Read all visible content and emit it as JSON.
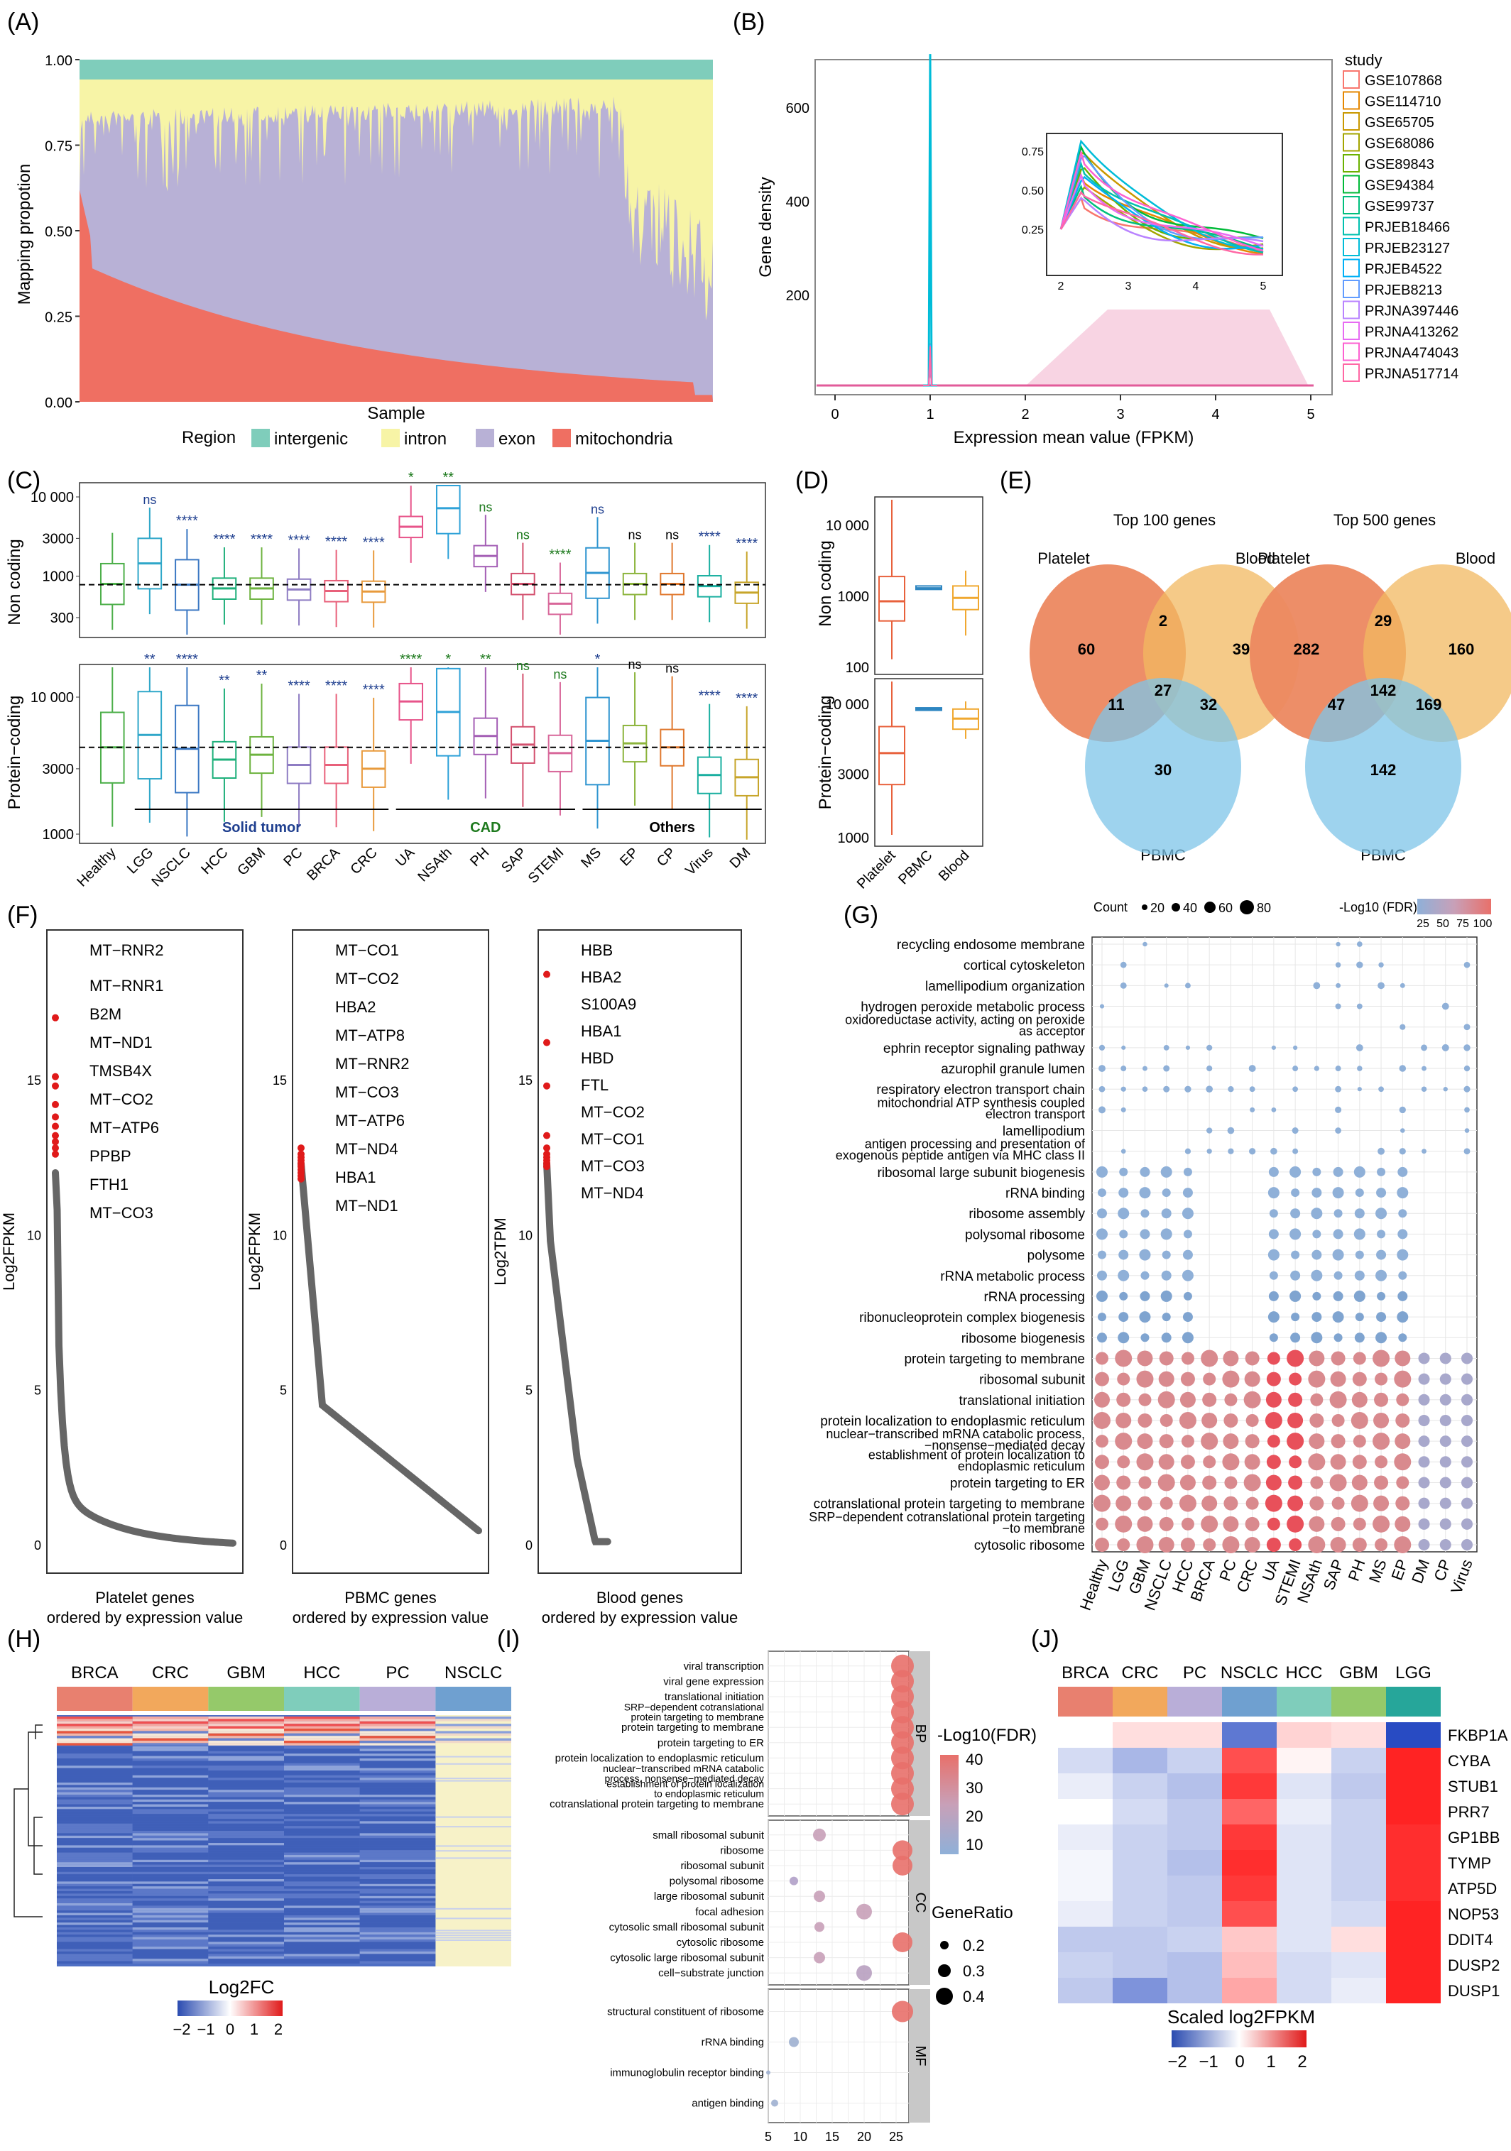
{
  "panels": {
    "A": {
      "label": "(A)",
      "ylabel": "Mapping propotion",
      "xlabel": "Sample",
      "legend_title": "Region",
      "yticks": [
        "0.00",
        "0.25",
        "0.50",
        "0.75",
        "1.00"
      ],
      "legend": [
        {
          "name": "intergenic",
          "color": "#7FCDBB"
        },
        {
          "name": "intron",
          "color": "#F7F4A6"
        },
        {
          "name": "exon",
          "color": "#B8B1D6"
        },
        {
          "name": "mitochondria",
          "color": "#EF6F62"
        }
      ]
    },
    "B": {
      "label": "(B)",
      "ylabel": "Gene density",
      "xlabel": "Expression mean value (FPKM)",
      "legend_title": "study",
      "yticks": [
        "200",
        "400",
        "600"
      ],
      "xticks": [
        "0",
        "1",
        "2",
        "3",
        "4",
        "5"
      ],
      "inset_xticks": [
        "2",
        "3",
        "4",
        "5"
      ],
      "inset_yticks": [
        "0.25",
        "0.50",
        "0.75"
      ],
      "studies": [
        {
          "name": "GSE107868",
          "color": "#F8766D"
        },
        {
          "name": "GSE114710",
          "color": "#E58700"
        },
        {
          "name": "GSE65705",
          "color": "#C99800"
        },
        {
          "name": "GSE68086",
          "color": "#A3A500"
        },
        {
          "name": "GSE89843",
          "color": "#6BB100"
        },
        {
          "name": "GSE94384",
          "color": "#00BA38"
        },
        {
          "name": "GSE99737",
          "color": "#00BF7D"
        },
        {
          "name": "PRJEB18466",
          "color": "#00C0AF"
        },
        {
          "name": "PRJEB23127",
          "color": "#00BCD8"
        },
        {
          "name": "PRJEB4522",
          "color": "#00B0F6"
        },
        {
          "name": "PRJEB8213",
          "color": "#619CFF"
        },
        {
          "name": "PRJNA397446",
          "color": "#B983FF"
        },
        {
          "name": "PRJNA413262",
          "color": "#E76BF3"
        },
        {
          "name": "PRJNA474043",
          "color": "#FD61D1"
        },
        {
          "name": "PRJNA517714",
          "color": "#FF67A4"
        }
      ]
    },
    "C": {
      "label": "(C)",
      "ylabel_top": "Non coding",
      "ylabel_bottom": "Protein−coding",
      "yticks_top": [
        "300",
        "1000",
        "3000",
        "10 000"
      ],
      "yticks_bottom": [
        "1000",
        "3000",
        "10 000"
      ],
      "groups": [
        {
          "name": "Solid tumor",
          "color": "#1F3F8F"
        },
        {
          "name": "CAD",
          "color": "#1E7A1E"
        },
        {
          "name": "Others",
          "color": "#000000"
        }
      ],
      "categories": [
        {
          "name": "Healthy",
          "color": "#4DAF4A",
          "sig_top": "",
          "sig_bottom": ""
        },
        {
          "name": "LGG",
          "color": "#2FA7C9",
          "sig_top": "ns",
          "sig_bottom": "**"
        },
        {
          "name": "NSCLC",
          "color": "#3B78C3",
          "sig_top": "****",
          "sig_bottom": "****"
        },
        {
          "name": "HCC",
          "color": "#1FB07B",
          "sig_top": "****",
          "sig_bottom": "**"
        },
        {
          "name": "GBM",
          "color": "#6DB33F",
          "sig_top": "****",
          "sig_bottom": "**"
        },
        {
          "name": "PC",
          "color": "#8E7CC3",
          "sig_top": "****",
          "sig_bottom": "****"
        },
        {
          "name": "BRCA",
          "color": "#E8607A",
          "sig_top": "****",
          "sig_bottom": "****"
        },
        {
          "name": "CRC",
          "color": "#E89A3C",
          "sig_top": "****",
          "sig_bottom": "****"
        },
        {
          "name": "UA",
          "color": "#E7548A",
          "sig_top": "*",
          "sig_bottom": "****"
        },
        {
          "name": "NSAth",
          "color": "#2FA2D8",
          "sig_top": "**",
          "sig_bottom": "*"
        },
        {
          "name": "PH",
          "color": "#A45FB5",
          "sig_top": "ns",
          "sig_bottom": "**"
        },
        {
          "name": "SAP",
          "color": "#D3506E",
          "sig_top": "ns",
          "sig_bottom": "ns"
        },
        {
          "name": "STEMI",
          "color": "#D8679A",
          "sig_top": "****",
          "sig_bottom": "ns"
        },
        {
          "name": "MS",
          "color": "#2F95D0",
          "sig_top": "ns",
          "sig_bottom": "*"
        },
        {
          "name": "EP",
          "color": "#8CB43C",
          "sig_top": "ns",
          "sig_bottom": "ns"
        },
        {
          "name": "CP",
          "color": "#E0782E",
          "sig_top": "ns",
          "sig_bottom": "ns"
        },
        {
          "name": "Virus",
          "color": "#1AAFA0",
          "sig_top": "****",
          "sig_bottom": "****"
        },
        {
          "name": "DM",
          "color": "#C7A52A",
          "sig_top": "****",
          "sig_bottom": "****"
        }
      ]
    },
    "D": {
      "label": "(D)",
      "ylabel_top": "Non coding",
      "ylabel_bottom": "Protein−coding",
      "yticks_top": [
        "100",
        "1000",
        "10 000"
      ],
      "yticks_bottom": [
        "1000",
        "3000",
        "10 000"
      ],
      "categories": [
        {
          "name": "Platelet",
          "color": "#E8613C"
        },
        {
          "name": "PBMC",
          "color": "#2E86C1"
        },
        {
          "name": "Blood",
          "color": "#F0A830"
        }
      ]
    },
    "E": {
      "label": "(E)",
      "venns": [
        {
          "title": "Top 100 genes",
          "set_a": "Platelet",
          "set_b": "Blood",
          "set_c": "PBMC",
          "only_a": "60",
          "only_b": "39",
          "only_c": "30",
          "ab": "2",
          "ac": "11",
          "bc": "32",
          "abc": "27"
        },
        {
          "title": "Top 500 genes",
          "set_a": "Platelet",
          "set_b": "Blood",
          "set_c": "PBMC",
          "only_a": "282",
          "only_b": "160",
          "only_c": "142",
          "ab": "29",
          "ac": "47",
          "bc": "169",
          "abc": "142"
        }
      ]
    },
    "F": {
      "label": "(F)",
      "plots": [
        {
          "ylabel": "Log2FPKM",
          "xlabel1": "Platelet genes",
          "xlabel2": "ordered by expression value",
          "yticks": [
            "0",
            "5",
            "10",
            "15"
          ],
          "genes": [
            "MT−RNR2",
            "MT−RNR1",
            "B2M",
            "MT−ND1",
            "TMSB4X",
            "MT−CO2",
            "MT−ATP6",
            "PPBP",
            "FTH1",
            "MT−CO3"
          ]
        },
        {
          "ylabel": "Log2FPKM",
          "xlabel1": "PBMC genes",
          "xlabel2": "ordered by expression value",
          "yticks": [
            "0",
            "5",
            "10",
            "15"
          ],
          "genes": [
            "MT−CO1",
            "MT−CO2",
            "HBA2",
            "MT−ATP8",
            "MT−RNR2",
            "MT−CO3",
            "MT−ATP6",
            "MT−ND4",
            "HBA1",
            "MT−ND1"
          ]
        },
        {
          "ylabel": "Log2TPM",
          "xlabel1": "Blood genes",
          "xlabel2": "ordered by expression value",
          "yticks": [
            "0",
            "5",
            "10",
            "15"
          ],
          "genes": [
            "HBB",
            "HBA2",
            "S100A9",
            "HBA1",
            "HBD",
            "FTL",
            "MT−CO2",
            "MT−CO1",
            "MT−CO3",
            "MT−ND4"
          ]
        }
      ]
    },
    "G": {
      "label": "(G)",
      "count_title": "Count",
      "count_values": [
        "20",
        "40",
        "60",
        "80"
      ],
      "fdr_title": "-Log10 (FDR)",
      "fdr_ticks": [
        "25",
        "50",
        "75",
        "100"
      ],
      "terms": [
        "recycling endosome membrane",
        "cortical cytoskeleton",
        "lamellipodium organization",
        "hydrogen peroxide metabolic process",
        "oxidoreductase activity, acting on peroxide|as acceptor",
        "ephrin receptor signaling pathway",
        "azurophil granule lumen",
        "respiratory electron transport chain",
        "mitochondrial ATP synthesis coupled|electron transport",
        "lamellipodium",
        "antigen processing and presentation of|exogenous peptide antigen via MHC class II",
        "ribosomal large subunit biogenesis",
        "rRNA binding",
        "ribosome assembly",
        "polysomal ribosome",
        "polysome",
        "rRNA metabolic process",
        "rRNA processing",
        "ribonucleoprotein complex biogenesis",
        "ribosome biogenesis",
        "protein targeting to membrane",
        "ribosomal subunit",
        "translational initiation",
        "protein localization to endoplasmic reticulum",
        "nuclear−transcribed mRNA catabolic process,|−nonsense−mediated decay",
        "establishment of protein localization to|endoplasmic reticulum",
        "protein targeting to ER",
        "cotranslational protein targeting to membrane",
        "SRP−dependent cotranslational protein targeting|−to membrane",
        "cytosolic ribosome"
      ],
      "columns": [
        "Healthy",
        "LGG",
        "GBM",
        "NSCLC",
        "HCC",
        "BRCA",
        "PC",
        "CRC",
        "UA",
        "STEMI",
        "NSAth",
        "SAP",
        "PH",
        "MS",
        "EP",
        "DM",
        "CP",
        "Virus"
      ]
    },
    "H": {
      "label": "(H)",
      "columns": [
        "BRCA",
        "CRC",
        "GBM",
        "HCC",
        "PC",
        "NSCLC"
      ],
      "column_colors": [
        "#E8806F",
        "#F2A85C",
        "#95C96A",
        "#7FCDBB",
        "#B9AED8",
        "#6FA0D0"
      ],
      "legend_title": "Log2FC",
      "legend_ticks": [
        "−2",
        "−1",
        "0",
        "1",
        "2"
      ]
    },
    "I": {
      "label": "(I)",
      "fdr_title": "-Log10(FDR)",
      "fdr_ticks": [
        "40",
        "30",
        "20",
        "10"
      ],
      "ratio_title": "GeneRatio",
      "ratio_values": [
        "0.2",
        "0.3",
        "0.4"
      ],
      "xticks": [
        "5",
        "10",
        "15",
        "20",
        "25"
      ],
      "facets": [
        {
          "name": "BP",
          "terms": [
            "viral transcription",
            "viral gene expression",
            "translational initiation",
            "SRP−dependent cotranslational|protein targeting to membrane",
            "protein targeting to membrane",
            "protein targeting to ER",
            "protein localization to endoplasmic reticulum",
            "nuclear−transcribed mRNA catabolic|process, nonsense−mediated decay",
            "establishment of protein localization|to endoplasmic reticulum",
            "cotranslational protein targeting to membrane"
          ]
        },
        {
          "name": "CC",
          "terms": [
            "small ribosomal subunit",
            "ribosome",
            "ribosomal subunit",
            "polysomal ribosome",
            "large ribosomal subunit",
            "focal adhesion",
            "cytosolic small ribosomal subunit",
            "cytosolic ribosome",
            "cytosolic large ribosomal subunit",
            "cell−substrate junction"
          ]
        },
        {
          "name": "MF",
          "terms": [
            "structural constituent of ribosome",
            "rRNA binding",
            "immunoglobulin receptor binding",
            "antigen binding"
          ]
        }
      ]
    },
    "J": {
      "label": "(J)",
      "columns": [
        "BRCA",
        "CRC",
        "PC",
        "NSCLC",
        "HCC",
        "GBM",
        "LGG"
      ],
      "column_colors": [
        "#E8806F",
        "#F2A85C",
        "#B9AED8",
        "#6FA0D0",
        "#7FCDBB",
        "#95C96A",
        "#26A69A"
      ],
      "genes": [
        "FKBP1A",
        "CYBA",
        "STUB1",
        "PRR7",
        "GP1BB",
        "TYMP",
        "ATP5D",
        "NOP53",
        "DDIT4",
        "DUSP2",
        "DUSP1"
      ],
      "legend_title": "Scaled log2FPKM",
      "legend_ticks": [
        "−2",
        "−1",
        "0",
        "1",
        "2"
      ]
    }
  }
}
